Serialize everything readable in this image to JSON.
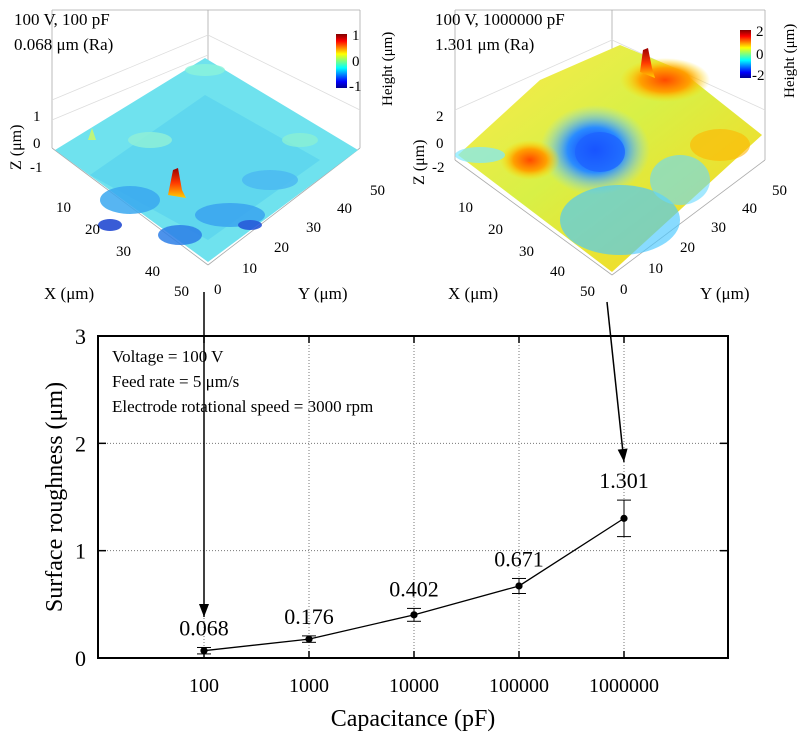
{
  "surface_left": {
    "title_line1": "100 V, 100 pF",
    "title_line2": "0.068 μm (Ra)",
    "colorbar_ticks": [
      "1",
      "0",
      "-1"
    ],
    "colorbar_label": "Height (μm)",
    "z_label": "Z (μm)",
    "z_ticks": [
      "1",
      "0",
      "-1"
    ],
    "x_label": "X (μm)",
    "x_ticks": [
      "10",
      "20",
      "30",
      "40",
      "50"
    ],
    "y_label": "Y (μm)",
    "y_ticks": [
      "0",
      "10",
      "20",
      "30",
      "40",
      "50"
    ]
  },
  "surface_right": {
    "title_line1": "100 V, 1000000 pF",
    "title_line2": "1.301 μm (Ra)",
    "colorbar_ticks": [
      "2",
      "0",
      "-2"
    ],
    "colorbar_label": "Height (μm)",
    "z_label": "Z (μm)",
    "z_ticks": [
      "2",
      "0",
      "-2"
    ],
    "x_label": "X (μm)",
    "x_ticks": [
      "10",
      "20",
      "30",
      "40",
      "50"
    ],
    "y_label": "Y (μm)",
    "y_ticks": [
      "0",
      "10",
      "20",
      "30",
      "40",
      "50"
    ]
  },
  "annotation": {
    "line1": "Voltage = 100 V",
    "line2": "Feed rate = 5 μm/s",
    "line3": "Electrode rotational speed = 3000 rpm"
  },
  "colors": {
    "line": "#000000",
    "grid": "#777777",
    "jet_high": "#a50000",
    "jet_mid": "#ffff00",
    "jet_cyan": "#40e0ff",
    "jet_low": "#00008f"
  },
  "chart_data": {
    "type": "line",
    "xscale": "log",
    "categories": [
      "100",
      "1000",
      "10000",
      "100000",
      "1000000"
    ],
    "x": [
      100,
      1000,
      10000,
      100000,
      1000000
    ],
    "values": [
      0.068,
      0.176,
      0.402,
      0.671,
      1.301
    ],
    "data_labels": [
      "0.068",
      "0.176",
      "0.402",
      "0.671",
      "1.301"
    ],
    "error": [
      0.03,
      0.03,
      0.06,
      0.07,
      0.17
    ],
    "xlabel": "Capacitance (pF)",
    "ylabel": "Surface roughness (μm)",
    "ylim": [
      0,
      3
    ],
    "yticks": [
      0,
      1,
      2,
      3
    ],
    "ytick_labels": [
      "0",
      "1",
      "2",
      "3"
    ],
    "grid": true
  }
}
